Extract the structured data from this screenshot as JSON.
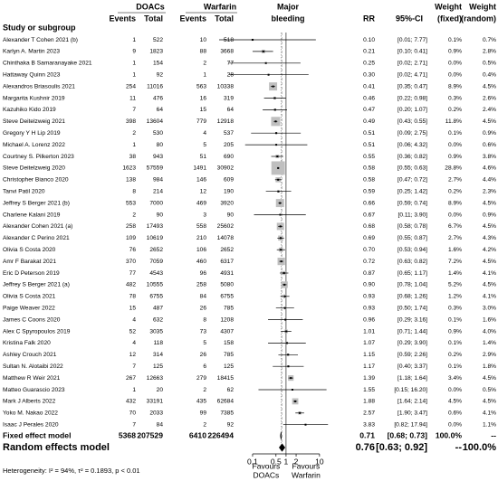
{
  "chart_data": {
    "type": "forest",
    "columns": {
      "study": "Study or subgroup",
      "group1": "DOACs",
      "group2": "Warfarin",
      "events": "Events",
      "total": "Total",
      "outcome": [
        "Major",
        "bleeding"
      ],
      "rr": "RR",
      "ci": "95%-CI",
      "weight": "Weight",
      "fixed": "(fixed)",
      "random": "(random)"
    },
    "xscale": "log",
    "xlim": [
      0.01,
      20
    ],
    "xticks": [
      0.1,
      0.5,
      1,
      2,
      10
    ],
    "null_value": 1,
    "favours_left": [
      "Favours",
      "DOACs"
    ],
    "favours_right": [
      "Favours",
      "Warfarin"
    ],
    "square_color": "#bfbfbf",
    "rows": [
      {
        "study": "Alexander T Cohen 2021 (b)",
        "e1": 1,
        "n1": 522,
        "e2": 10,
        "n2": 518,
        "rr": 0.1,
        "rr_label": "0.10",
        "ci": [
          0.01,
          7.77
        ],
        "ci_label": "[0.01; 7.77]",
        "wf": 0.1,
        "wf_label": "0.1%",
        "wr": "0.7%"
      },
      {
        "study": "Karlyn A. Martin 2023",
        "e1": 9,
        "n1": 1823,
        "e2": 88,
        "n2": 3668,
        "rr": 0.21,
        "rr_label": "0.21",
        "ci": [
          0.1,
          0.41
        ],
        "ci_label": "[0.10; 0.41]",
        "wf": 0.9,
        "wf_label": "0.9%",
        "wr": "2.8%"
      },
      {
        "study": "Chinthaka B Samaranayake 2021",
        "e1": 1,
        "n1": 154,
        "e2": 2,
        "n2": 77,
        "rr": 0.25,
        "rr_label": "0.25",
        "ci": [
          0.02,
          2.71
        ],
        "ci_label": "[0.02; 2.71]",
        "wf": 0.0,
        "wf_label": "0.0%",
        "wr": "0.5%"
      },
      {
        "study": "Hattaway Quinn 2023",
        "e1": 1,
        "n1": 92,
        "e2": 1,
        "n2": 28,
        "rr": 0.3,
        "rr_label": "0.30",
        "ci": [
          0.02,
          4.71
        ],
        "ci_label": "[0.02; 4.71]",
        "wf": 0.0,
        "wf_label": "0.0%",
        "wr": "0.4%"
      },
      {
        "study": "Alexandros Briasoulis 2021",
        "e1": 254,
        "n1": 11016,
        "e2": 563,
        "n2": 10338,
        "rr": 0.41,
        "rr_label": "0.41",
        "ci": [
          0.35,
          0.47
        ],
        "ci_label": "[0.35; 0.47]",
        "wf": 8.9,
        "wf_label": "8.9%",
        "wr": "4.5%"
      },
      {
        "study": "Margarita Kushnir 2019",
        "e1": 11,
        "n1": 476,
        "e2": 16,
        "n2": 319,
        "rr": 0.46,
        "rr_label": "0.46",
        "ci": [
          0.22,
          0.98
        ],
        "ci_label": "[0.22; 0.98]",
        "wf": 0.3,
        "wf_label": "0.3%",
        "wr": "2.6%"
      },
      {
        "study": "Kazuhiko Kido 2019",
        "e1": 7,
        "n1": 64,
        "e2": 15,
        "n2": 64,
        "rr": 0.47,
        "rr_label": "0.47",
        "ci": [
          0.2,
          1.07
        ],
        "ci_label": "[0.20; 1.07]",
        "wf": 0.2,
        "wf_label": "0.2%",
        "wr": "2.4%"
      },
      {
        "study": "Steve Deitelzweig 2021",
        "e1": 398,
        "n1": 13604,
        "e2": 779,
        "n2": 12918,
        "rr": 0.49,
        "rr_label": "0.49",
        "ci": [
          0.43,
          0.55
        ],
        "ci_label": "[0.43; 0.55]",
        "wf": 11.8,
        "wf_label": "11.8%",
        "wr": "4.5%"
      },
      {
        "study": "Gregory Y H Lip 2019",
        "e1": 2,
        "n1": 530,
        "e2": 4,
        "n2": 537,
        "rr": 0.51,
        "rr_label": "0.51",
        "ci": [
          0.09,
          2.75
        ],
        "ci_label": "[0.09; 2.75]",
        "wf": 0.1,
        "wf_label": "0.1%",
        "wr": "0.9%"
      },
      {
        "study": "Michael A. Lorenz 2022",
        "e1": 1,
        "n1": 80,
        "e2": 5,
        "n2": 205,
        "rr": 0.51,
        "rr_label": "0.51",
        "ci": [
          0.06,
          4.32
        ],
        "ci_label": "[0.06; 4.32]",
        "wf": 0.0,
        "wf_label": "0.0%",
        "wr": "0.6%"
      },
      {
        "study": "Courtney S. Pilkerton 2023",
        "e1": 38,
        "n1": 943,
        "e2": 51,
        "n2": 690,
        "rr": 0.55,
        "rr_label": "0.55",
        "ci": [
          0.36,
          0.82
        ],
        "ci_label": "[0.36; 0.82]",
        "wf": 0.9,
        "wf_label": "0.9%",
        "wr": "3.8%"
      },
      {
        "study": "Steve Deitelzweig 2020",
        "e1": 1623,
        "n1": 57559,
        "e2": 1491,
        "n2": 30902,
        "rr": 0.58,
        "rr_label": "0.58",
        "ci": [
          0.55,
          0.63
        ],
        "ci_label": "[0.55; 0.63]",
        "wf": 28.8,
        "wf_label": "28.8%",
        "wr": "4.6%"
      },
      {
        "study": "Christopher Bianco 2020",
        "e1": 138,
        "n1": 984,
        "e2": 146,
        "n2": 609,
        "rr": 0.58,
        "rr_label": "0.58",
        "ci": [
          0.47,
          0.72
        ],
        "ci_label": "[0.47; 0.72]",
        "wf": 2.7,
        "wf_label": "2.7%",
        "wr": "4.4%"
      },
      {
        "study": "Tanvi Patil 2020",
        "e1": 8,
        "n1": 214,
        "e2": 12,
        "n2": 190,
        "rr": 0.59,
        "rr_label": "0.59",
        "ci": [
          0.25,
          1.42
        ],
        "ci_label": "[0.25; 1.42]",
        "wf": 0.2,
        "wf_label": "0.2%",
        "wr": "2.3%"
      },
      {
        "study": "Jeffrey S Berger 2021 (b)",
        "e1": 553,
        "n1": 7000,
        "e2": 469,
        "n2": 3920,
        "rr": 0.66,
        "rr_label": "0.66",
        "ci": [
          0.59,
          0.74
        ],
        "ci_label": "[0.59; 0.74]",
        "wf": 8.9,
        "wf_label": "8.9%",
        "wr": "4.5%"
      },
      {
        "study": "Charlene Kalani 2019",
        "e1": 2,
        "n1": 90,
        "e2": 3,
        "n2": 90,
        "rr": 0.67,
        "rr_label": "0.67",
        "ci": [
          0.11,
          3.9
        ],
        "ci_label": "[0.11; 3.90]",
        "wf": 0.0,
        "wf_label": "0.0%",
        "wr": "0.9%"
      },
      {
        "study": "Alexander Cohen 2021 (a)",
        "e1": 258,
        "n1": 17493,
        "e2": 558,
        "n2": 25602,
        "rr": 0.68,
        "rr_label": "0.68",
        "ci": [
          0.58,
          0.78
        ],
        "ci_label": "[0.58; 0.78]",
        "wf": 6.7,
        "wf_label": "6.7%",
        "wr": "4.5%"
      },
      {
        "study": "Alexander C Perino 2021",
        "e1": 109,
        "n1": 10619,
        "e2": 210,
        "n2": 14078,
        "rr": 0.69,
        "rr_label": "0.69",
        "ci": [
          0.55,
          0.87
        ],
        "ci_label": "[0.55; 0.87]",
        "wf": 2.7,
        "wf_label": "2.7%",
        "wr": "4.3%"
      },
      {
        "study": "Olivia S Costa 2020",
        "e1": 76,
        "n1": 2652,
        "e2": 106,
        "n2": 2652,
        "rr": 0.7,
        "rr_label": "0.70",
        "ci": [
          0.53,
          0.94
        ],
        "ci_label": "[0.53; 0.94]",
        "wf": 1.6,
        "wf_label": "1.6%",
        "wr": "4.2%"
      },
      {
        "study": "Amr F Barakat 2021",
        "e1": 370,
        "n1": 7059,
        "e2": 460,
        "n2": 6317,
        "rr": 0.72,
        "rr_label": "0.72",
        "ci": [
          0.63,
          0.82
        ],
        "ci_label": "[0.63; 0.82]",
        "wf": 7.2,
        "wf_label": "7.2%",
        "wr": "4.5%"
      },
      {
        "study": "Eric D Peterson 2019",
        "e1": 77,
        "n1": 4543,
        "e2": 96,
        "n2": 4931,
        "rr": 0.87,
        "rr_label": "0.87",
        "ci": [
          0.65,
          1.17
        ],
        "ci_label": "[0.65; 1.17]",
        "wf": 1.4,
        "wf_label": "1.4%",
        "wr": "4.1%"
      },
      {
        "study": "Jeffrey S Berger 2021 (a)",
        "e1": 482,
        "n1": 10555,
        "e2": 258,
        "n2": 5080,
        "rr": 0.9,
        "rr_label": "0.90",
        "ci": [
          0.78,
          1.04
        ],
        "ci_label": "[0.78; 1.04]",
        "wf": 5.2,
        "wf_label": "5.2%",
        "wr": "4.5%"
      },
      {
        "study": "Olivia S Costa 2021",
        "e1": 78,
        "n1": 6755,
        "e2": 84,
        "n2": 6755,
        "rr": 0.93,
        "rr_label": "0.93",
        "ci": [
          0.68,
          1.26
        ],
        "ci_label": "[0.68; 1.26]",
        "wf": 1.2,
        "wf_label": "1.2%",
        "wr": "4.1%"
      },
      {
        "study": "Paige Weaver 2022",
        "e1": 15,
        "n1": 487,
        "e2": 26,
        "n2": 785,
        "rr": 0.93,
        "rr_label": "0.93",
        "ci": [
          0.5,
          1.74
        ],
        "ci_label": "[0.50; 1.74]",
        "wf": 0.3,
        "wf_label": "0.3%",
        "wr": "3.0%"
      },
      {
        "study": "James C Coons 2020",
        "e1": 4,
        "n1": 632,
        "e2": 8,
        "n2": 1208,
        "rr": 0.96,
        "rr_label": "0.96",
        "ci": [
          0.29,
          3.16
        ],
        "ci_label": "[0.29; 3.16]",
        "wf": 0.1,
        "wf_label": "0.1%",
        "wr": "1.6%"
      },
      {
        "study": "Alex C Spyropoulos 2019",
        "e1": 52,
        "n1": 3035,
        "e2": 73,
        "n2": 4307,
        "rr": 1.01,
        "rr_label": "1.01",
        "ci": [
          0.71,
          1.44
        ],
        "ci_label": "[0.71; 1.44]",
        "wf": 0.9,
        "wf_label": "0.9%",
        "wr": "4.0%"
      },
      {
        "study": "Kristina Falk 2020",
        "e1": 4,
        "n1": 118,
        "e2": 5,
        "n2": 158,
        "rr": 1.07,
        "rr_label": "1.07",
        "ci": [
          0.29,
          3.9
        ],
        "ci_label": "[0.29; 3.90]",
        "wf": 0.1,
        "wf_label": "0.1%",
        "wr": "1.4%"
      },
      {
        "study": "Ashley Crouch 2021",
        "e1": 12,
        "n1": 314,
        "e2": 26,
        "n2": 785,
        "rr": 1.15,
        "rr_label": "1.15",
        "ci": [
          0.59,
          2.26
        ],
        "ci_label": "[0.59; 2.26]",
        "wf": 0.2,
        "wf_label": "0.2%",
        "wr": "2.9%"
      },
      {
        "study": "Sultan N. Alotaibi 2022",
        "e1": 7,
        "n1": 125,
        "e2": 6,
        "n2": 125,
        "rr": 1.17,
        "rr_label": "1.17",
        "ci": [
          0.4,
          3.37
        ],
        "ci_label": "[0.40; 3.37]",
        "wf": 0.1,
        "wf_label": "0.1%",
        "wr": "1.8%"
      },
      {
        "study": "Matthew R Weir 2021",
        "e1": 267,
        "n1": 12663,
        "e2": 279,
        "n2": 18415,
        "rr": 1.39,
        "rr_label": "1.39",
        "ci": [
          1.18,
          1.64
        ],
        "ci_label": "[1.18; 1.64]",
        "wf": 3.4,
        "wf_label": "3.4%",
        "wr": "4.5%"
      },
      {
        "study": "Matteo Guarascio 2023",
        "e1": 1,
        "n1": 20,
        "e2": 2,
        "n2": 62,
        "rr": 1.55,
        "rr_label": "1.55",
        "ci": [
          0.15,
          16.2
        ],
        "ci_label": "[0.15; 16.20]",
        "wf": 0.0,
        "wf_label": "0.0%",
        "wr": "0.5%"
      },
      {
        "study": "Mark J Alberts 2022",
        "e1": 432,
        "n1": 33191,
        "e2": 435,
        "n2": 62684,
        "rr": 1.88,
        "rr_label": "1.88",
        "ci": [
          1.64,
          2.14
        ],
        "ci_label": "[1.64; 2.14]",
        "wf": 4.5,
        "wf_label": "4.5%",
        "wr": "4.5%"
      },
      {
        "study": "Yoko M. Nakao 2022",
        "e1": 70,
        "n1": 2033,
        "e2": 99,
        "n2": 7385,
        "rr": 2.57,
        "rr_label": "2.57",
        "ci": [
          1.9,
          3.47
        ],
        "ci_label": "[1.90; 3.47]",
        "wf": 0.6,
        "wf_label": "0.6%",
        "wr": "4.1%"
      },
      {
        "study": "Isaac J Perales 2020",
        "e1": 7,
        "n1": 84,
        "e2": 2,
        "n2": 92,
        "rr": 3.83,
        "rr_label": "3.83",
        "ci": [
          0.82,
          17.94
        ],
        "ci_label": "[0.82; 17.94]",
        "wf": 0.0,
        "wf_label": "0.0%",
        "wr": "1.1%"
      }
    ],
    "fixed": {
      "label": "Fixed effect model",
      "e1": 5368,
      "n1": 207529,
      "e2": 6410,
      "n2": 226494,
      "rr": 0.71,
      "rr_label": "0.71",
      "ci": [
        0.68,
        0.73
      ],
      "ci_label": "[0.68; 0.73]",
      "wf": "100.0%",
      "wr": "--"
    },
    "random": {
      "label": "Random effects model",
      "rr": 0.76,
      "rr_label": "0.76",
      "ci": [
        0.63,
        0.92
      ],
      "ci_label": "[0.63; 0.92]",
      "wf": "--",
      "wr": "100.0%"
    },
    "heterogeneity": "Heterogeneity: I² = 94%, τ² = 0.1893, p < 0.01"
  }
}
